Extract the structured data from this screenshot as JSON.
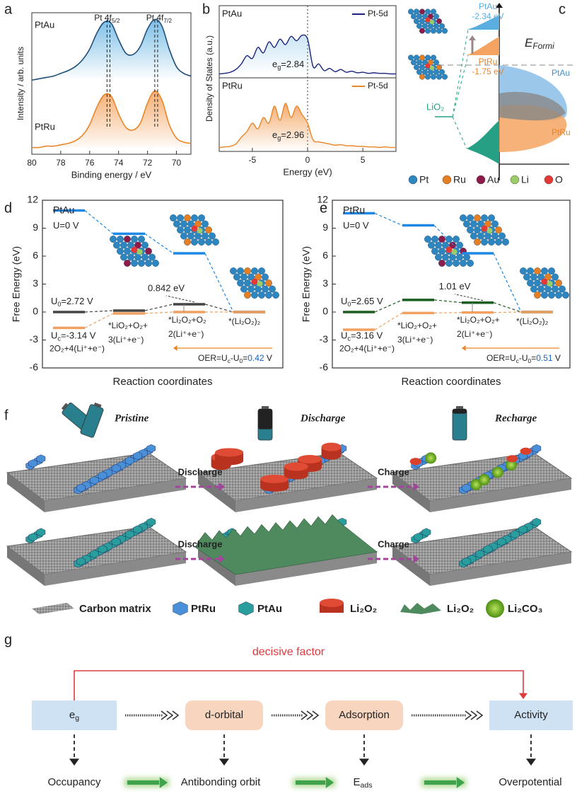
{
  "panel_labels": {
    "a": "a",
    "b": "b",
    "c": "c",
    "d": "d",
    "e": "e",
    "f": "f",
    "g": "g"
  },
  "panel_a": {
    "type": "line",
    "ylabel": "Intensity / arb. units",
    "xlabel": "Binding energy / eV",
    "xlim": [
      80,
      69
    ],
    "xticks": [
      80,
      78,
      76,
      74,
      72,
      70
    ],
    "ylim": [
      0,
      1.05
    ],
    "peak_labels": [
      [
        "Pt 4f",
        "5/2"
      ],
      [
        "Pt 4f",
        "7/2"
      ]
    ],
    "peak_lines": [
      74.8,
      74.6,
      71.5,
      71.3
    ],
    "x": [
      80,
      79.5,
      79,
      78.5,
      78,
      77.5,
      77,
      76.5,
      76,
      75.5,
      75,
      74.5,
      74,
      73.5,
      73,
      72.5,
      72,
      71.5,
      71,
      70.5,
      70,
      69.5,
      69
    ],
    "series": [
      {
        "name": "PtAu",
        "color": "#1f4e79",
        "values": [
          0.55,
          0.56,
          0.57,
          0.58,
          0.6,
          0.62,
          0.65,
          0.7,
          0.78,
          0.9,
          0.98,
          0.97,
          0.85,
          0.75,
          0.74,
          0.8,
          0.93,
          1.0,
          0.95,
          0.78,
          0.65,
          0.6,
          0.58
        ]
      },
      {
        "name": "PtRu",
        "color": "#e8862a",
        "values": [
          0.05,
          0.05,
          0.06,
          0.06,
          0.07,
          0.08,
          0.1,
          0.14,
          0.22,
          0.35,
          0.44,
          0.43,
          0.3,
          0.2,
          0.18,
          0.23,
          0.38,
          0.47,
          0.4,
          0.22,
          0.12,
          0.09,
          0.08
        ]
      }
    ]
  },
  "panel_b": {
    "type": "line",
    "ylabel": "Density of States (a.u.)",
    "xlabel": "Energy (eV)",
    "xlim": [
      -8,
      8
    ],
    "xticks": [
      -5,
      0,
      5
    ],
    "ylim": [
      0,
      1
    ],
    "x": [
      -8,
      -7.5,
      -7,
      -6.5,
      -6,
      -5.5,
      -5,
      -4.5,
      -4,
      -3.5,
      -3,
      -2.5,
      -2,
      -1.5,
      -1,
      -0.5,
      0,
      0.5,
      1,
      1.5,
      2,
      2.5,
      3,
      3.5,
      4,
      4.5,
      5,
      5.5,
      6,
      6.5,
      7,
      7.5,
      8
    ],
    "series": [
      {
        "name": "PtAu",
        "legend": "Pt-5d",
        "color": "#1a237e",
        "eg": [
          "e",
          "g",
          "=2.84"
        ],
        "values": [
          0.02,
          0.03,
          0.05,
          0.1,
          0.2,
          0.35,
          0.3,
          0.5,
          0.4,
          0.6,
          0.5,
          0.65,
          0.55,
          0.7,
          0.62,
          0.72,
          0.65,
          0.15,
          0.2,
          0.08,
          0.12,
          0.06,
          0.1,
          0.05,
          0.07,
          0.04,
          0.05,
          0.03,
          0.04,
          0.03,
          0.03,
          0.02,
          0.02
        ]
      },
      {
        "name": "PtRu",
        "legend": "Pt-5d",
        "color": "#e8862a",
        "eg": [
          "e",
          "g",
          "=2.96"
        ],
        "values": [
          0.02,
          0.03,
          0.04,
          0.08,
          0.2,
          0.3,
          0.45,
          0.35,
          0.55,
          0.45,
          0.75,
          0.5,
          0.8,
          0.55,
          0.75,
          0.6,
          0.45,
          0.15,
          0.12,
          0.1,
          0.08,
          0.06,
          0.07,
          0.05,
          0.05,
          0.04,
          0.04,
          0.03,
          0.03,
          0.02,
          0.03,
          0.02,
          0.02
        ]
      }
    ]
  },
  "panel_c": {
    "levels": [
      {
        "name": "PtAu",
        "energy": "-2.34 eV",
        "color": "#5aaee0"
      },
      {
        "name": "PtRu",
        "energy": "-1.75 eV",
        "color": "#f4a460"
      }
    ],
    "fermi": [
      "E",
      "Formi"
    ],
    "bands": [
      "PtAu",
      "PtRu"
    ],
    "lio2": "LiO₂",
    "legend": [
      {
        "name": "Pt",
        "color": "#2e86c1"
      },
      {
        "name": "Ru",
        "color": "#e67e22"
      },
      {
        "name": "Au",
        "color": "#8e1c4a"
      },
      {
        "name": "Li",
        "color": "#9ccc65"
      },
      {
        "name": "O",
        "color": "#e53935"
      }
    ]
  },
  "panel_d": {
    "type": "energy",
    "title": "PtAu",
    "ylabel": "Free Energy (eV)",
    "xlabel": "Reaction coordinates",
    "ylim": [
      -6,
      12
    ],
    "yticks": [
      -6,
      -3,
      0,
      3,
      6,
      9,
      12
    ],
    "series": [
      {
        "label": [
          "U=0 V"
        ],
        "color": "#1e88e5",
        "values": [
          10.9,
          8.4,
          6.3,
          0
        ]
      },
      {
        "label": [
          "U",
          "0",
          "=2.72 V"
        ],
        "color": "#444444",
        "values": [
          0,
          0.15,
          0.84,
          0
        ]
      },
      {
        "label": [
          "U",
          "c",
          "=-3.14 V"
        ],
        "color": "#f0a060",
        "values": [
          -1.7,
          -0.15,
          0,
          0
        ]
      }
    ],
    "states": [
      [
        "2O₂+4(Li⁺+e⁻)"
      ],
      [
        "*LiO₂+O₂+",
        "3(Li⁺+e⁻)"
      ],
      [
        "*Li₂O₂+O₂",
        "2(Li⁺+e⁻)"
      ],
      [
        "*(Li₂O₂)₂"
      ]
    ],
    "barrier": "0.842 eV",
    "oer": [
      "OER=U",
      "c",
      "-U",
      "0",
      "=",
      "0.42",
      " V"
    ]
  },
  "panel_e": {
    "type": "energy",
    "title": "PtRu",
    "ylabel": "Free Energy (eV)",
    "xlabel": "Reaction coordinates",
    "ylim": [
      -6,
      12
    ],
    "yticks": [
      -6,
      -3,
      0,
      3,
      6,
      9,
      12
    ],
    "series": [
      {
        "label": [
          "U=0 V"
        ],
        "color": "#1e88e5",
        "values": [
          10.6,
          9.3,
          6.3,
          0
        ]
      },
      {
        "label": [
          "U",
          "0",
          "=2.65 V"
        ],
        "color": "#1b5e20",
        "values": [
          0,
          1.3,
          1.01,
          0
        ]
      },
      {
        "label": [
          "U",
          "c",
          "=3.16 V"
        ],
        "color": "#f0a060",
        "values": [
          -1.9,
          -0.1,
          -0.05,
          0
        ]
      }
    ],
    "states": [
      [
        "2O₂+4(Li⁺+e⁻)"
      ],
      [
        "*LiO₂+O₂+",
        "3(Li⁺+e⁻)"
      ],
      [
        "*Li₂O₂+O₂+",
        "2(Li⁺+e⁻)"
      ],
      [
        "*(Li₂O₂)₂"
      ]
    ],
    "barrier": "1.01 eV",
    "oer": [
      "OER=U",
      "c",
      "-U",
      "0",
      "=",
      "0.51",
      " V"
    ]
  },
  "panel_f": {
    "stages": [
      "Pristine",
      "Discharge",
      "Recharge"
    ],
    "arrows": [
      [
        "Discharge",
        "Charge"
      ],
      [
        "Discharge",
        "Charge"
      ]
    ],
    "legend": [
      "Carbon matrix",
      "PtRu",
      "PtAu",
      "Li₂O₂",
      "Li₂O₂",
      "Li₂CO₃"
    ]
  },
  "panel_g": {
    "top": "decisive factor",
    "boxes": [
      [
        "e",
        "g"
      ],
      [
        "d-orbital"
      ],
      [
        "Adsorption"
      ],
      [
        "Activity"
      ]
    ],
    "bottom": [
      [
        "Occupancy"
      ],
      [
        "Antibonding orbit"
      ],
      [
        "E",
        "ads"
      ],
      [
        "Overpotential"
      ]
    ]
  }
}
